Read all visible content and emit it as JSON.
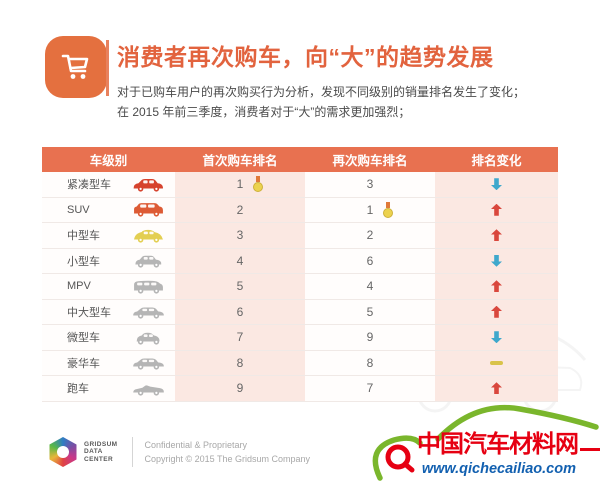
{
  "header": {
    "icon": "shopping-cart-icon",
    "title": "消费者再次购车，向“大”的趋势发展",
    "subtitle_line1": "对于已购车用户的再次购买行为分析，发现不同级别的销量排名发生了变化；",
    "subtitle_line2": "在 2015 年前三季度，消费者对于“大”的需求更加强烈；",
    "accent_color": "#e2633e",
    "badge_color": "#e4703f"
  },
  "table": {
    "columns": [
      "车级别",
      "首次购车排名",
      "再次购车排名",
      "排名变化"
    ],
    "header_bg": "#e87150",
    "stripe_color": "#fbe8e2",
    "change_colors": {
      "up": "#d9473d",
      "down": "#3fa8cc",
      "same": "#d9c34a"
    },
    "rows": [
      {
        "label": "紧凑型车",
        "car_icon": "hatchback-car-icon",
        "car_variant": "hatch",
        "car_color": "#d6432e",
        "first_rank": "1",
        "first_medal": true,
        "repeat_rank": "3",
        "repeat_medal": false,
        "change": "down"
      },
      {
        "label": "SUV",
        "car_icon": "suv-car-icon",
        "car_variant": "suv",
        "car_color": "#dd5b35",
        "first_rank": "2",
        "first_medal": false,
        "repeat_rank": "1",
        "repeat_medal": true,
        "change": "up"
      },
      {
        "label": "中型车",
        "car_icon": "beetle-car-icon",
        "car_variant": "beetle",
        "car_color": "#e3cf52",
        "first_rank": "3",
        "first_medal": false,
        "repeat_rank": "2",
        "repeat_medal": false,
        "change": "up"
      },
      {
        "label": "小型车",
        "car_icon": "small-car-icon",
        "car_variant": "small",
        "car_color": "#b5b5b5",
        "first_rank": "4",
        "first_medal": false,
        "repeat_rank": "6",
        "repeat_medal": false,
        "change": "down"
      },
      {
        "label": "MPV",
        "car_icon": "mpv-van-icon",
        "car_variant": "van",
        "car_color": "#b5b5b5",
        "first_rank": "5",
        "first_medal": false,
        "repeat_rank": "4",
        "repeat_medal": false,
        "change": "up"
      },
      {
        "label": "中大型车",
        "car_icon": "large-sedan-icon",
        "car_variant": "sedan",
        "car_color": "#b5b5b5",
        "first_rank": "6",
        "first_medal": false,
        "repeat_rank": "5",
        "repeat_medal": false,
        "change": "up"
      },
      {
        "label": "微型车",
        "car_icon": "mini-car-icon",
        "car_variant": "mini",
        "car_color": "#b5b5b5",
        "first_rank": "7",
        "first_medal": false,
        "repeat_rank": "9",
        "repeat_medal": false,
        "change": "down"
      },
      {
        "label": "豪华车",
        "car_icon": "luxury-car-icon",
        "car_variant": "sedan",
        "car_color": "#b5b5b5",
        "first_rank": "8",
        "first_medal": false,
        "repeat_rank": "8",
        "repeat_medal": false,
        "change": "same"
      },
      {
        "label": "跑车",
        "car_icon": "sports-car-icon",
        "car_variant": "sports",
        "car_color": "#b5b5b5",
        "first_rank": "9",
        "first_medal": false,
        "repeat_rank": "7",
        "repeat_medal": false,
        "change": "up"
      }
    ]
  },
  "footer": {
    "logo_line1": "GRIDSUM",
    "logo_line2": "DATA",
    "logo_line3": "CENTER",
    "line1": "Confidential & Proprietary",
    "line2": "Copyright © 2015 The Gridsum Company"
  },
  "watermark": {
    "site_name": "中国汽车材料网",
    "site_url": "www.qichecailiao.com",
    "name_color": "#e60012",
    "url_color": "#1260b0",
    "car_outline_color": "#7ab62c"
  },
  "chart_data": {
    "type": "table",
    "title": "消费者再次购车，向“大”的趋势发展",
    "columns": [
      "车级别",
      "首次购车排名",
      "再次购车排名",
      "排名变化"
    ],
    "rows": [
      [
        "紧凑型车",
        1,
        3,
        "down"
      ],
      [
        "SUV",
        2,
        1,
        "up"
      ],
      [
        "中型车",
        3,
        2,
        "up"
      ],
      [
        "小型车",
        4,
        6,
        "down"
      ],
      [
        "MPV",
        5,
        4,
        "up"
      ],
      [
        "中大型车",
        6,
        5,
        "up"
      ],
      [
        "微型车",
        7,
        9,
        "down"
      ],
      [
        "豪华车",
        8,
        8,
        "same"
      ],
      [
        "跑车",
        9,
        7,
        "up"
      ]
    ],
    "annotations": [
      "首次购车排名第1（紧凑型车）带金牌标记",
      "再次购车排名第1（SUV）带金牌标记"
    ]
  }
}
